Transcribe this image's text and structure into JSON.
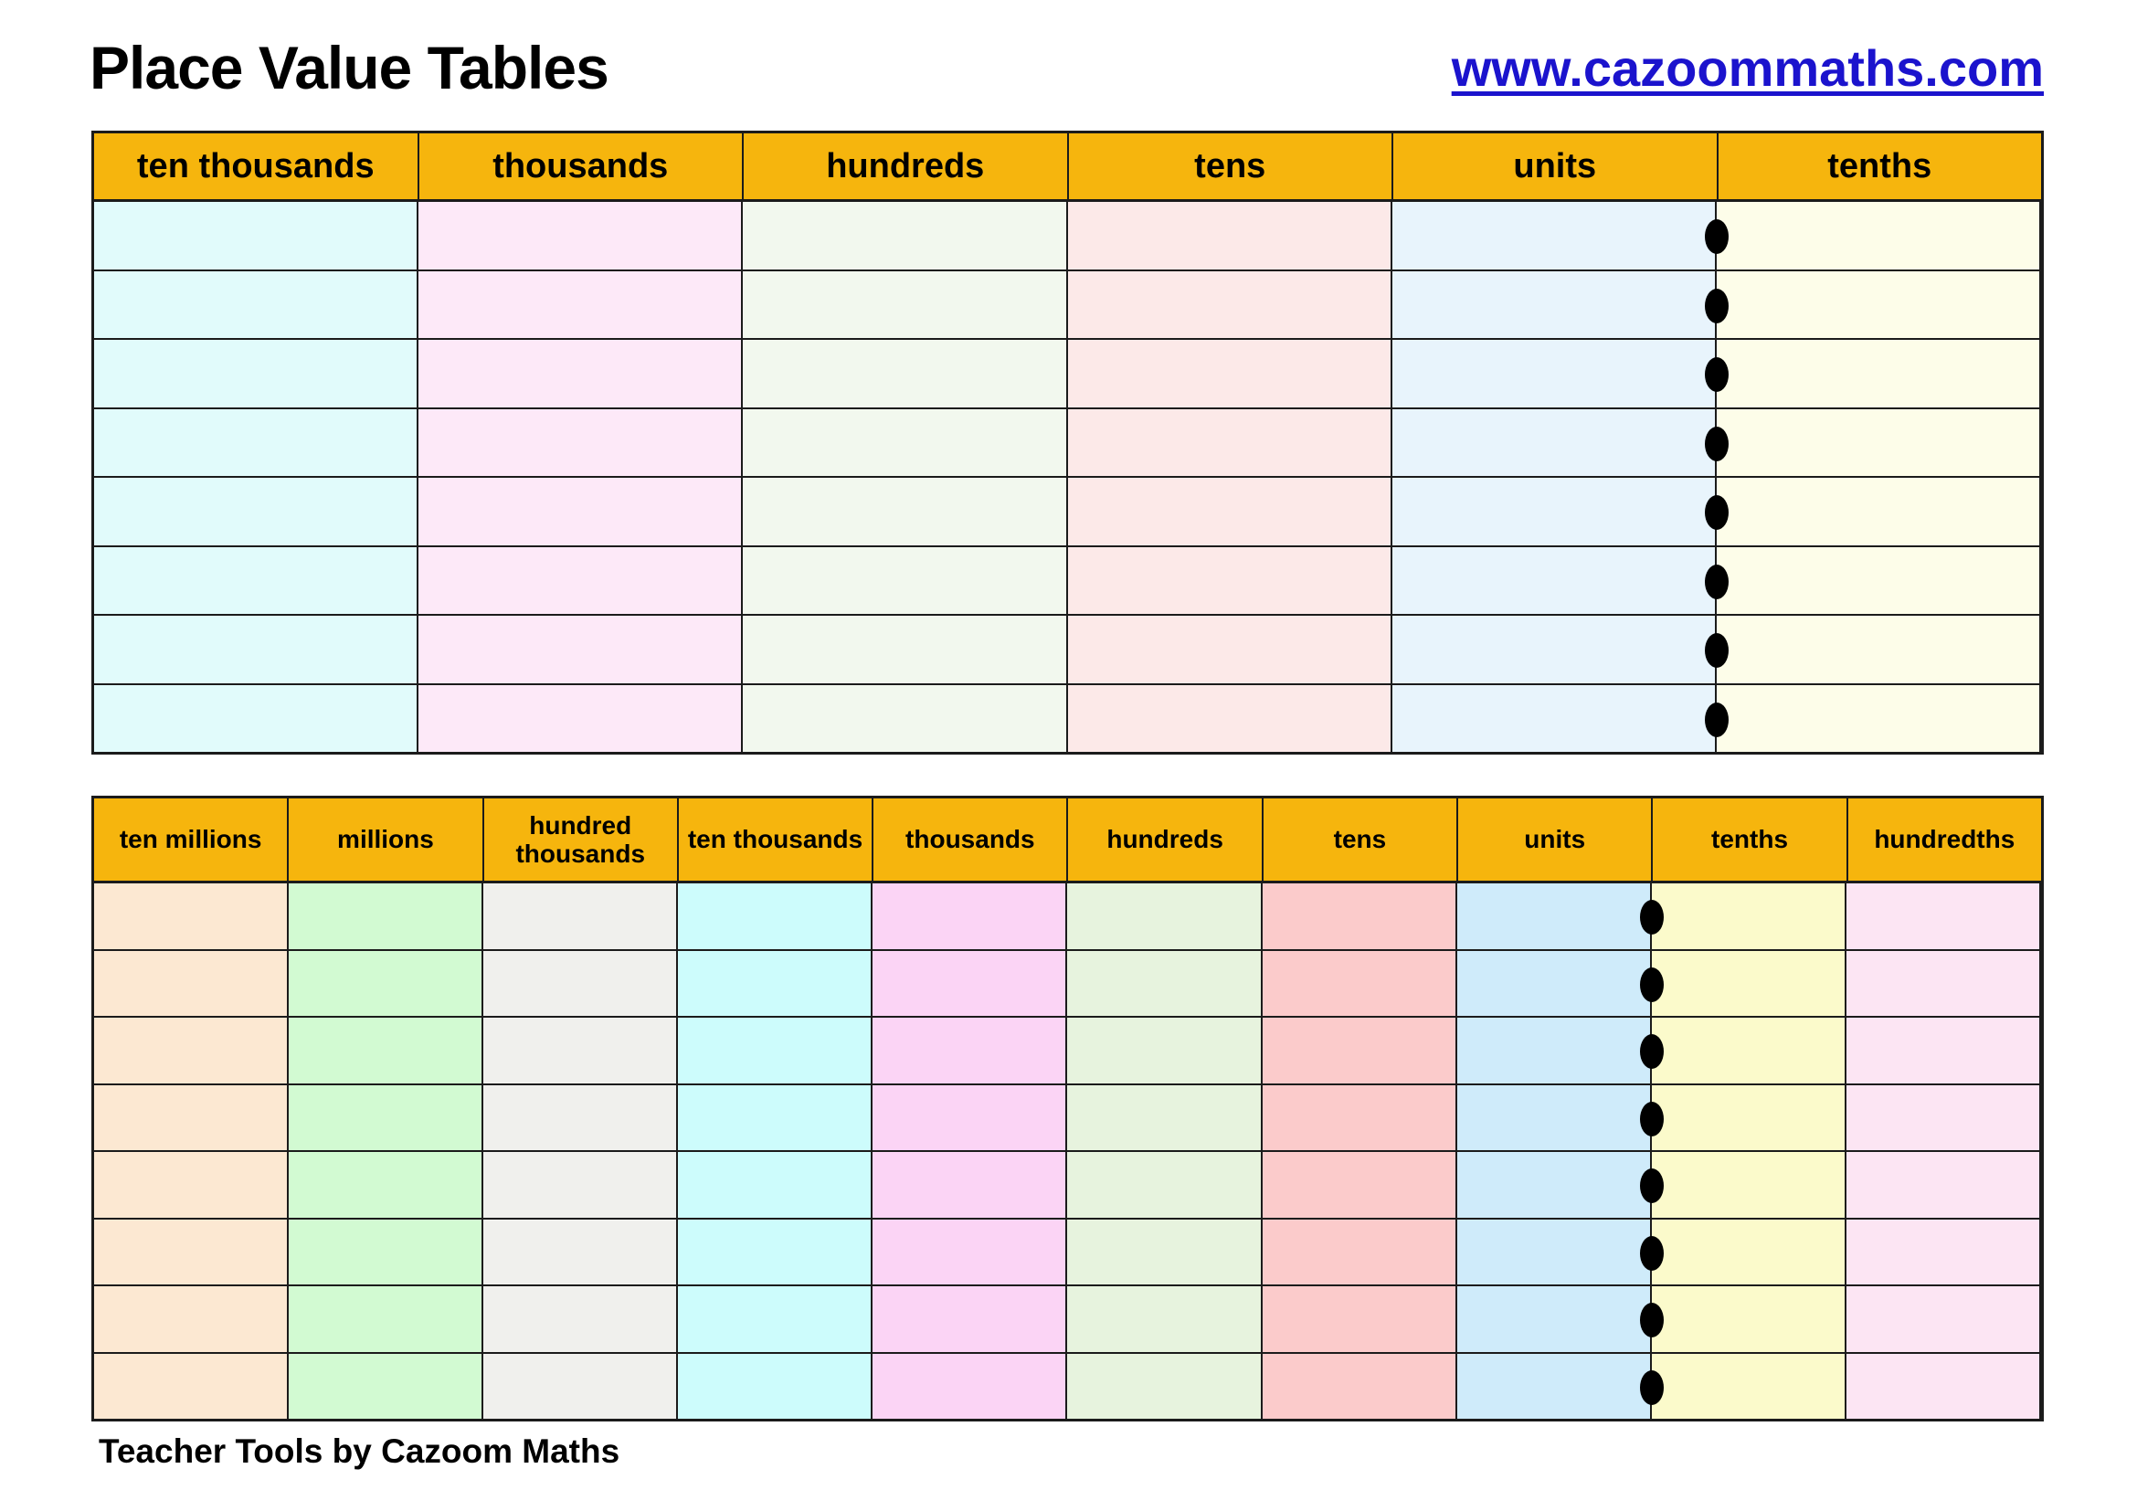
{
  "page": {
    "title": "Place Value Tables",
    "link": "www.cazoommaths.com",
    "footer": "Teacher Tools by Cazoom Maths"
  },
  "colors": {
    "header_bg": "#f6b50d",
    "border": "#1b1b1b",
    "link": "#1b13cd",
    "dot": "#000000",
    "page_bg": "#ffffff"
  },
  "tables": [
    {
      "name": "place-value-table-simple",
      "rows": 8,
      "decimal_point_after_column": "units",
      "decimal_point_symbol": "dot",
      "columns": [
        {
          "label": "ten thousands",
          "color": "#e1fbfb"
        },
        {
          "label": "thousands",
          "color": "#fde9f8"
        },
        {
          "label": "hundreds",
          "color": "#f2f8ee"
        },
        {
          "label": "tens",
          "color": "#fce9e8"
        },
        {
          "label": "units",
          "color": "#e8f4fc"
        },
        {
          "label": "tenths",
          "color": "#fdfde9"
        }
      ]
    },
    {
      "name": "place-value-table-extended",
      "rows": 8,
      "decimal_point_after_column": "units",
      "decimal_point_symbol": "dot",
      "columns": [
        {
          "label": "ten millions",
          "color": "#fce8d2"
        },
        {
          "label": "millions",
          "color": "#d2fad2"
        },
        {
          "label": "hundred thousands",
          "color": "#f0f0ed"
        },
        {
          "label": "ten thousands",
          "color": "#cdfcfc"
        },
        {
          "label": "thousands",
          "color": "#fbd4f5"
        },
        {
          "label": "hundreds",
          "color": "#e7f3de"
        },
        {
          "label": "tens",
          "color": "#fbcbcb"
        },
        {
          "label": "units",
          "color": "#cfebfa"
        },
        {
          "label": "tenths",
          "color": "#fbfacb"
        },
        {
          "label": "hundredths",
          "color": "#fce5f3"
        }
      ]
    }
  ]
}
